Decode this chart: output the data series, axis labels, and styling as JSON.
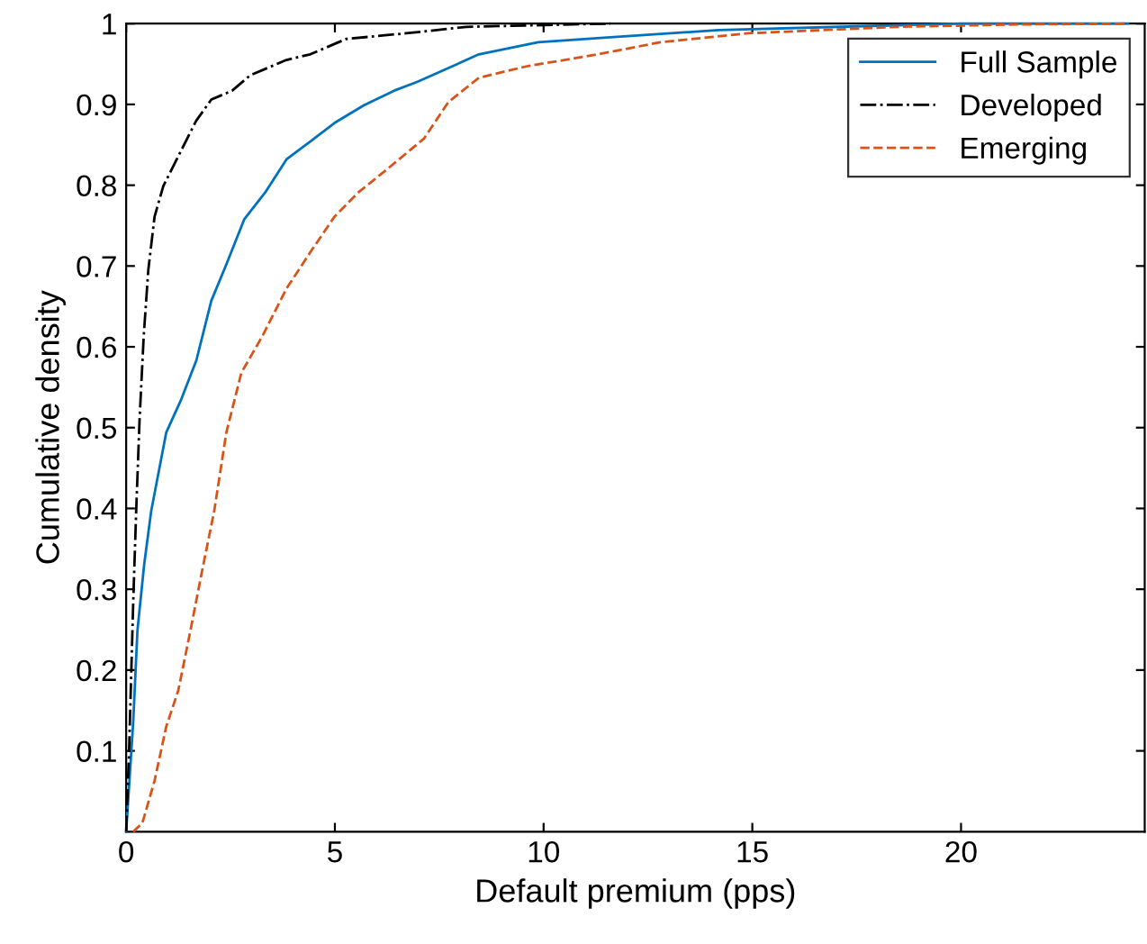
{
  "chart_data": {
    "type": "line",
    "xlabel": "Default premium (pps)",
    "ylabel": "Cumulative density",
    "xlim": [
      0,
      24.4
    ],
    "ylim": [
      0,
      1
    ],
    "xticks": [
      0,
      5,
      10,
      15,
      20
    ],
    "yticks": [
      0.1,
      0.2,
      0.3,
      0.4,
      0.5,
      0.6,
      0.7,
      0.8,
      0.9,
      1
    ],
    "grid": false,
    "legend": "top right",
    "series": [
      {
        "name": "Full Sample",
        "color": "#0072bd",
        "line_style": "solid",
        "x": [
          0,
          0.17,
          0.27,
          0.43,
          0.6,
          0.96,
          1.32,
          1.68,
          2.04,
          2.4,
          2.83,
          3.33,
          3.84,
          4.41,
          4.99,
          5.7,
          6.42,
          6.98,
          8.15,
          8.45,
          9.87,
          11.6,
          14.2,
          18.5,
          20,
          24
        ],
        "values": [
          0,
          0.137,
          0.249,
          0.33,
          0.397,
          0.494,
          0.535,
          0.583,
          0.657,
          0.702,
          0.758,
          0.791,
          0.832,
          0.854,
          0.877,
          0.899,
          0.917,
          0.928,
          0.955,
          0.962,
          0.977,
          0.983,
          0.992,
          0.998,
          1,
          1
        ]
      },
      {
        "name": "Developed",
        "color": "#000000",
        "line_style": "dashdot",
        "x": [
          0,
          0.07,
          0.17,
          0.24,
          0.32,
          0.42,
          0.53,
          0.68,
          0.89,
          1.25,
          1.68,
          2.04,
          2.54,
          2.97,
          3.84,
          4.41,
          5.27,
          6.71,
          8.15,
          11.6
        ],
        "values": [
          0,
          0.1,
          0.286,
          0.397,
          0.509,
          0.613,
          0.695,
          0.761,
          0.799,
          0.836,
          0.88,
          0.906,
          0.917,
          0.936,
          0.955,
          0.962,
          0.981,
          0.988,
          0.996,
          1
        ]
      },
      {
        "name": "Emerging",
        "color": "#d95319",
        "line_style": "dashed",
        "x": [
          0.17,
          0.39,
          0.68,
          0.96,
          1.25,
          1.54,
          1.82,
          2.11,
          2.4,
          2.76,
          3.26,
          3.84,
          4.41,
          4.99,
          5.56,
          6.28,
          7.14,
          7.72,
          8.45,
          9.58,
          11.3,
          12.8,
          14.9,
          18.5,
          21.4,
          24
        ],
        "values": [
          0,
          0.011,
          0.063,
          0.13,
          0.175,
          0.249,
          0.323,
          0.397,
          0.494,
          0.568,
          0.613,
          0.672,
          0.717,
          0.761,
          0.791,
          0.821,
          0.858,
          0.903,
          0.933,
          0.947,
          0.962,
          0.977,
          0.988,
          0.996,
          0.999,
          1
        ]
      }
    ]
  }
}
